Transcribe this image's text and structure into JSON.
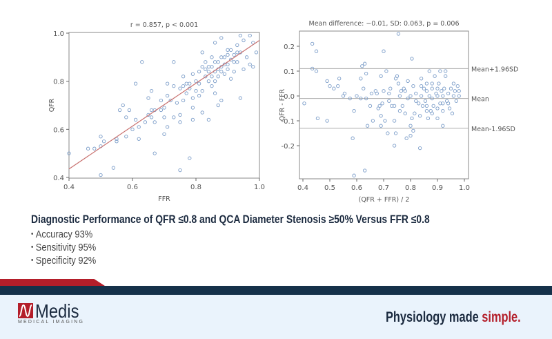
{
  "chart_data": [
    {
      "type": "scatter",
      "title": "r = 0.857, p < 0.001",
      "xlabel": "FFR",
      "ylabel": "QFR",
      "xlim": [
        0.4,
        1.0
      ],
      "ylim": [
        0.4,
        1.0
      ],
      "xticks": [
        "0.4",
        "0.6",
        "0.8",
        "1.0"
      ],
      "yticks": [
        "0.4",
        "0.6",
        "0.8",
        "1.0"
      ],
      "grid": false,
      "marker_color": "#7a9cc8",
      "regression_line": {
        "color": "#c8706e",
        "points": [
          [
            0.4,
            0.435
          ],
          [
            1.0,
            0.97
          ]
        ]
      },
      "points": [
        [
          0.4,
          0.5
        ],
        [
          0.46,
          0.52
        ],
        [
          0.48,
          0.52
        ],
        [
          0.5,
          0.53
        ],
        [
          0.5,
          0.57
        ],
        [
          0.51,
          0.55
        ],
        [
          0.5,
          0.41
        ],
        [
          0.54,
          0.44
        ],
        [
          0.55,
          0.55
        ],
        [
          0.55,
          0.56
        ],
        [
          0.56,
          0.68
        ],
        [
          0.57,
          0.7
        ],
        [
          0.58,
          0.65
        ],
        [
          0.58,
          0.57
        ],
        [
          0.59,
          0.68
        ],
        [
          0.6,
          0.6
        ],
        [
          0.61,
          0.64
        ],
        [
          0.61,
          0.79
        ],
        [
          0.62,
          0.61
        ],
        [
          0.62,
          0.56
        ],
        [
          0.63,
          0.88
        ],
        [
          0.64,
          0.63
        ],
        [
          0.65,
          0.73
        ],
        [
          0.65,
          0.66
        ],
        [
          0.66,
          0.76
        ],
        [
          0.66,
          0.68
        ],
        [
          0.66,
          0.65
        ],
        [
          0.67,
          0.63
        ],
        [
          0.67,
          0.5
        ],
        [
          0.67,
          0.68
        ],
        [
          0.69,
          0.68
        ],
        [
          0.69,
          0.72
        ],
        [
          0.7,
          0.65
        ],
        [
          0.7,
          0.58
        ],
        [
          0.7,
          0.69
        ],
        [
          0.71,
          0.61
        ],
        [
          0.71,
          0.74
        ],
        [
          0.71,
          0.79
        ],
        [
          0.72,
          0.72
        ],
        [
          0.73,
          0.65
        ],
        [
          0.73,
          0.88
        ],
        [
          0.73,
          0.78
        ],
        [
          0.74,
          0.71
        ],
        [
          0.75,
          0.63
        ],
        [
          0.75,
          0.43
        ],
        [
          0.75,
          0.66
        ],
        [
          0.75,
          0.77
        ],
        [
          0.76,
          0.72
        ],
        [
          0.76,
          0.82
        ],
        [
          0.77,
          0.75
        ],
        [
          0.78,
          0.48
        ],
        [
          0.78,
          0.79
        ],
        [
          0.79,
          0.64
        ],
        [
          0.79,
          0.69
        ],
        [
          0.79,
          0.73
        ],
        [
          0.79,
          0.83
        ],
        [
          0.8,
          0.76
        ],
        [
          0.8,
          0.8
        ],
        [
          0.81,
          0.74
        ],
        [
          0.81,
          0.84
        ],
        [
          0.82,
          0.67
        ],
        [
          0.82,
          0.76
        ],
        [
          0.82,
          0.92
        ],
        [
          0.82,
          0.86
        ],
        [
          0.83,
          0.88
        ],
        [
          0.84,
          0.64
        ],
        [
          0.84,
          0.8
        ],
        [
          0.85,
          0.78
        ],
        [
          0.85,
          0.86
        ],
        [
          0.85,
          0.9
        ],
        [
          0.86,
          0.75
        ],
        [
          0.86,
          0.96
        ],
        [
          0.86,
          0.84
        ],
        [
          0.87,
          0.7
        ],
        [
          0.87,
          0.88
        ],
        [
          0.87,
          0.82
        ],
        [
          0.88,
          0.72
        ],
        [
          0.88,
          0.98
        ],
        [
          0.88,
          0.86
        ],
        [
          0.89,
          0.9
        ],
        [
          0.89,
          0.83
        ],
        [
          0.9,
          0.93
        ],
        [
          0.9,
          0.87
        ],
        [
          0.91,
          0.81
        ],
        [
          0.91,
          0.89
        ],
        [
          0.92,
          0.84
        ],
        [
          0.92,
          0.91
        ],
        [
          0.93,
          0.95
        ],
        [
          0.93,
          0.88
        ],
        [
          0.94,
          0.73
        ],
        [
          0.94,
          0.99
        ],
        [
          0.94,
          0.92
        ],
        [
          0.95,
          0.85
        ],
        [
          0.95,
          0.97
        ],
        [
          0.96,
          0.9
        ],
        [
          0.97,
          0.87
        ],
        [
          0.97,
          0.99
        ],
        [
          0.98,
          0.86
        ],
        [
          0.98,
          0.96
        ],
        [
          0.99,
          0.92
        ],
        [
          0.83,
          0.82
        ],
        [
          0.84,
          0.86
        ],
        [
          0.86,
          0.88
        ],
        [
          0.87,
          0.85
        ],
        [
          0.88,
          0.9
        ],
        [
          0.89,
          0.87
        ],
        [
          0.9,
          0.91
        ],
        [
          0.91,
          0.93
        ],
        [
          0.92,
          0.88
        ],
        [
          0.93,
          0.92
        ],
        [
          0.84,
          0.84
        ],
        [
          0.85,
          0.82
        ],
        [
          0.86,
          0.8
        ],
        [
          0.88,
          0.84
        ],
        [
          0.9,
          0.85
        ],
        [
          0.76,
          0.78
        ],
        [
          0.77,
          0.79
        ],
        [
          0.78,
          0.77
        ],
        [
          0.81,
          0.79
        ],
        [
          0.83,
          0.85
        ]
      ]
    },
    {
      "type": "scatter",
      "title": "Mean difference: −0.01, SD: 0.063, p = 0.006",
      "xlabel": "(QFR + FFR) / 2",
      "ylabel": "QFR - FFR",
      "xlim": [
        0.4,
        1.0
      ],
      "ylim": [
        -0.33,
        0.26
      ],
      "xticks": [
        "0.4",
        "0.5",
        "0.6",
        "0.7",
        "0.8",
        "0.9",
        "1.0"
      ],
      "yticks": [
        "0.2",
        "0.1",
        "0.0",
        "-0.1",
        "-0.2"
      ],
      "grid": false,
      "marker_color": "#7a9cc8",
      "reference_lines": [
        {
          "label": "Mean+1.96SD",
          "y": 0.11
        },
        {
          "label": "Mean",
          "y": -0.01
        },
        {
          "label": "Mean-1.96SD",
          "y": -0.13
        }
      ],
      "points": [
        [
          0.405,
          -0.03
        ],
        [
          0.435,
          0.21
        ],
        [
          0.435,
          0.11
        ],
        [
          0.45,
          0.18
        ],
        [
          0.45,
          0.1
        ],
        [
          0.455,
          -0.09
        ],
        [
          0.49,
          0.06
        ],
        [
          0.49,
          -0.1
        ],
        [
          0.5,
          0.04
        ],
        [
          0.515,
          0.03
        ],
        [
          0.53,
          0.04
        ],
        [
          0.535,
          0.07
        ],
        [
          0.55,
          0.0
        ],
        [
          0.555,
          0.01
        ],
        [
          0.575,
          -0.01
        ],
        [
          0.585,
          -0.17
        ],
        [
          0.59,
          -0.06
        ],
        [
          0.59,
          -0.32
        ],
        [
          0.6,
          0.0
        ],
        [
          0.615,
          0.07
        ],
        [
          0.615,
          -0.01
        ],
        [
          0.62,
          0.12
        ],
        [
          0.625,
          0.03
        ],
        [
          0.63,
          0.13
        ],
        [
          0.63,
          -0.3
        ],
        [
          0.635,
          0.09
        ],
        [
          0.635,
          -0.01
        ],
        [
          0.64,
          -0.12
        ],
        [
          0.65,
          -0.04
        ],
        [
          0.655,
          0.01
        ],
        [
          0.66,
          -0.1
        ],
        [
          0.67,
          0.02
        ],
        [
          0.675,
          0.01
        ],
        [
          0.68,
          -0.05
        ],
        [
          0.685,
          -0.04
        ],
        [
          0.69,
          0.08
        ],
        [
          0.69,
          -0.08
        ],
        [
          0.69,
          -0.12
        ],
        [
          0.695,
          -0.03
        ],
        [
          0.7,
          0.18
        ],
        [
          0.7,
          0.02
        ],
        [
          0.705,
          -0.1
        ],
        [
          0.71,
          0.1
        ],
        [
          0.715,
          -0.15
        ],
        [
          0.72,
          0.01
        ],
        [
          0.725,
          0.03
        ],
        [
          0.73,
          -0.04
        ],
        [
          0.74,
          -0.1
        ],
        [
          0.74,
          -0.2
        ],
        [
          0.745,
          0.07
        ],
        [
          0.745,
          -0.15
        ],
        [
          0.75,
          0.08
        ],
        [
          0.755,
          0.25
        ],
        [
          0.755,
          0.05
        ],
        [
          0.76,
          -0.06
        ],
        [
          0.765,
          0.02
        ],
        [
          0.77,
          -0.04
        ],
        [
          0.775,
          0.03
        ],
        [
          0.78,
          -0.07
        ],
        [
          0.785,
          -0.17
        ],
        [
          0.79,
          0.06
        ],
        [
          0.79,
          -0.01
        ],
        [
          0.8,
          -0.16
        ],
        [
          0.8,
          -0.12
        ],
        [
          0.805,
          0.15
        ],
        [
          0.805,
          -0.09
        ],
        [
          0.81,
          -0.14
        ],
        [
          0.81,
          0.04
        ],
        [
          0.815,
          -0.07
        ],
        [
          0.82,
          0.01
        ],
        [
          0.83,
          -0.03
        ],
        [
          0.835,
          -0.21
        ],
        [
          0.835,
          -0.08
        ],
        [
          0.84,
          0.07
        ],
        [
          0.845,
          -0.04
        ],
        [
          0.85,
          0.03
        ],
        [
          0.855,
          -0.02
        ],
        [
          0.86,
          0.05
        ],
        [
          0.865,
          -0.09
        ],
        [
          0.87,
          0.1
        ],
        [
          0.87,
          0.0
        ],
        [
          0.875,
          -0.06
        ],
        [
          0.88,
          0.03
        ],
        [
          0.885,
          -0.04
        ],
        [
          0.89,
          0.08
        ],
        [
          0.895,
          0.01
        ],
        [
          0.9,
          -0.09
        ],
        [
          0.905,
          0.05
        ],
        [
          0.91,
          0.1
        ],
        [
          0.91,
          -0.03
        ],
        [
          0.915,
          0.02
        ],
        [
          0.92,
          -0.12
        ],
        [
          0.92,
          -0.06
        ],
        [
          0.925,
          0.03
        ],
        [
          0.93,
          0.08
        ],
        [
          0.93,
          0.1
        ],
        [
          0.935,
          -0.02
        ],
        [
          0.94,
          0.01
        ],
        [
          0.945,
          -0.05
        ],
        [
          0.95,
          0.03
        ],
        [
          0.955,
          -0.07
        ],
        [
          0.96,
          0.05
        ],
        [
          0.965,
          0.02
        ],
        [
          0.97,
          -0.02
        ],
        [
          0.975,
          0.04
        ],
        [
          0.98,
          0.0
        ],
        [
          0.98,
          0.02
        ],
        [
          0.78,
          0.02
        ],
        [
          0.8,
          0.0
        ],
        [
          0.82,
          -0.02
        ],
        [
          0.84,
          0.0
        ],
        [
          0.86,
          -0.04
        ],
        [
          0.86,
          0.02
        ],
        [
          0.88,
          -0.01
        ],
        [
          0.88,
          -0.07
        ],
        [
          0.9,
          0.0
        ],
        [
          0.9,
          -0.05
        ],
        [
          0.92,
          0.0
        ],
        [
          0.94,
          -0.03
        ],
        [
          0.96,
          0.0
        ],
        [
          0.84,
          0.04
        ],
        [
          0.86,
          -0.06
        ],
        [
          0.88,
          0.05
        ],
        [
          0.9,
          0.03
        ],
        [
          0.92,
          -0.03
        ],
        [
          0.76,
          0.0
        ],
        [
          0.74,
          -0.04
        ],
        [
          0.72,
          -0.02
        ]
      ]
    }
  ],
  "summary": {
    "heading": "Diagnostic Performance of QFR ≤0.8 and QCA Diameter Stenosis ≥50% Versus FFR ≤0.8",
    "bullets": [
      "Accuracy 93%",
      "Sensitivity 95%",
      "Specificity 92%"
    ]
  },
  "footer": {
    "logo_name": "Medis",
    "logo_subtitle": "MEDICAL IMAGING",
    "tagline_main": "Physiology made ",
    "tagline_accent": "simple.",
    "brand_red": "#b41e2a",
    "brand_navy": "#15314a"
  }
}
